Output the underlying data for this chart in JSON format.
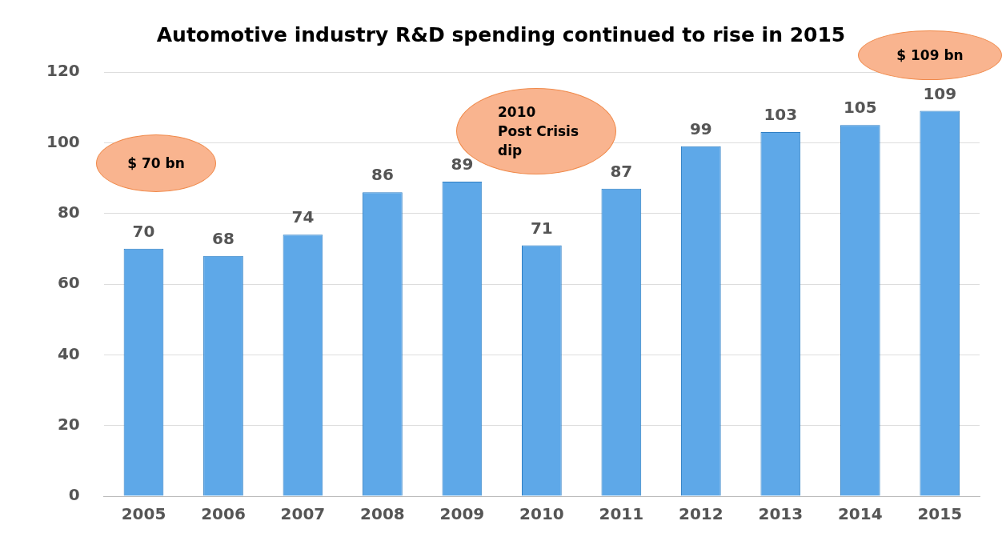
{
  "chart_data": {
    "type": "bar",
    "title": "Automotive industry R&D spending continued to rise in 2015",
    "categories": [
      "2005",
      "2006",
      "2007",
      "2008",
      "2009",
      "2010",
      "2011",
      "2012",
      "2013",
      "2014",
      "2015"
    ],
    "values": [
      70,
      68,
      74,
      86,
      89,
      71,
      87,
      99,
      103,
      105,
      109
    ],
    "color": "#5ea8e8",
    "ylim": [
      0,
      120
    ],
    "yticks": [
      0,
      20,
      40,
      60,
      80,
      100,
      120
    ],
    "grid": "y",
    "data_labels": true,
    "legend": false,
    "annotations": [
      "$ 70 bn",
      "2010\nPost Crisis\ndip",
      "$ 109 bn"
    ]
  }
}
